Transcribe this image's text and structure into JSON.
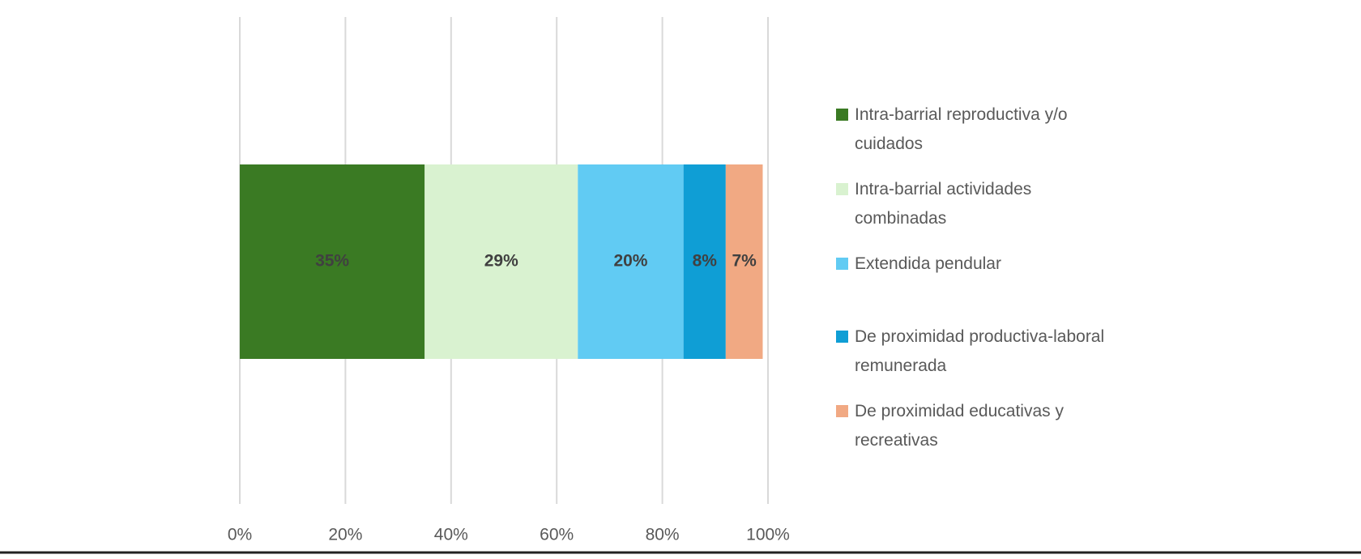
{
  "chart_data": {
    "type": "stacked-bar-horizontal",
    "categories": [
      null
    ],
    "series": [
      {
        "name": "Intra-barrial reproductiva y/o cuidados",
        "color": "#3a7a23",
        "values": [
          35
        ],
        "value_labels": [
          "35%"
        ]
      },
      {
        "name": "Intra-barrial actividades combinadas",
        "color": "#d9f2d0",
        "values": [
          29
        ],
        "value_labels": [
          "29%"
        ]
      },
      {
        "name": "Extendida pendular",
        "color": "#61cbf3",
        "values": [
          20
        ],
        "value_labels": [
          "20%"
        ]
      },
      {
        "name": "De proximidad productiva-laboral remunerada",
        "color": "#0f9ed5",
        "values": [
          8
        ],
        "value_labels": [
          "8%"
        ]
      },
      {
        "name": "De proximidad educativas y recreativas",
        "color": "#f1a983",
        "values": [
          7
        ],
        "value_labels": [
          "7%"
        ]
      }
    ],
    "xlim": [
      0,
      100
    ],
    "xticks": [
      {
        "value": 0,
        "label": "0%"
      },
      {
        "value": 20,
        "label": "20%"
      },
      {
        "value": 40,
        "label": "40%"
      },
      {
        "value": 60,
        "label": "60%"
      },
      {
        "value": 80,
        "label": "80%"
      },
      {
        "value": 100,
        "label": "100%"
      }
    ],
    "grid": true,
    "legend": "right"
  }
}
